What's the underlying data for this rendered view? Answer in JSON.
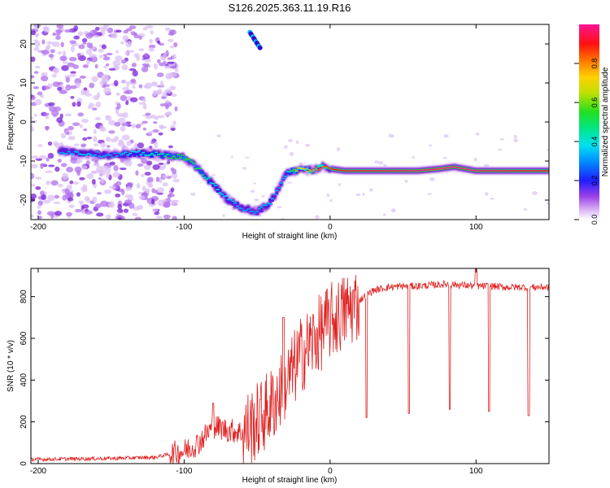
{
  "chart_data": [
    {
      "type": "heatmap",
      "title": "S126.2025.363.11.19.R16",
      "xlabel": "Height of straight line (km)",
      "ylabel": "Frequency (Hz)",
      "xlim": [
        -205,
        150
      ],
      "ylim": [
        -25,
        25
      ],
      "xticks": [
        -200,
        -100,
        0,
        100
      ],
      "yticks": [
        -20,
        -10,
        0,
        10,
        20
      ],
      "colorbar": {
        "label": "Normalized spectral amplitude",
        "range": [
          0,
          1
        ],
        "ticks": [
          0.0,
          0.2,
          0.4,
          0.6,
          0.8
        ],
        "colormap": [
          "#ffffff",
          "#c78df0",
          "#7a20d8",
          "#1a1aff",
          "#0090ff",
          "#00d8ff",
          "#00e6a0",
          "#20e020",
          "#b8e000",
          "#ffd000",
          "#ff8000",
          "#ff1010",
          "#ff1493"
        ]
      },
      "ridge_track": {
        "x": [
          -185,
          -170,
          -150,
          -130,
          -115,
          -100,
          -90,
          -80,
          -70,
          -60,
          -50,
          -42,
          -35,
          -30,
          -25,
          -20,
          -15,
          -10,
          -5,
          0,
          10,
          30,
          60,
          75,
          85,
          100,
          125,
          150
        ],
        "y": [
          -7.5,
          -8,
          -8.5,
          -8,
          -8.5,
          -9,
          -12,
          -16,
          -20,
          -22,
          -23,
          -21,
          -17,
          -13,
          -12.5,
          -12,
          -12.5,
          -12,
          -11.5,
          -12,
          -12.5,
          -12.5,
          -12.5,
          -12,
          -11.5,
          -12.5,
          -12.5,
          -12.5
        ],
        "amplitude": [
          0.3,
          0.35,
          0.3,
          0.4,
          0.45,
          0.55,
          0.5,
          0.4,
          0.35,
          0.3,
          0.3,
          0.35,
          0.3,
          0.35,
          0.55,
          0.7,
          0.75,
          0.8,
          0.8,
          0.85,
          0.9,
          0.9,
          0.95,
          1.0,
          0.95,
          0.95,
          0.9,
          0.9
        ]
      },
      "upper_feature": {
        "x": [
          -55,
          -48
        ],
        "y": [
          23,
          19
        ]
      }
    },
    {
      "type": "line",
      "xlabel": "Height of straight line (km)",
      "ylabel": "SNR (10 * v/v)",
      "xlim": [
        -205,
        150
      ],
      "ylim": [
        0,
        935
      ],
      "xticks": [
        -200,
        -100,
        0,
        100
      ],
      "yticks": [
        0,
        200,
        400,
        600,
        800
      ],
      "color": "#e02020",
      "series": [
        {
          "name": "SNR",
          "x": [
            -205,
            -150,
            -120,
            -100,
            -90,
            -80,
            -70,
            -60,
            -50,
            -40,
            -30,
            -25,
            -20,
            -15,
            -10,
            -5,
            0,
            5,
            10,
            15,
            20,
            25,
            30,
            40,
            50,
            60,
            70,
            80,
            90,
            100,
            110,
            120,
            130,
            140,
            150
          ],
          "y": [
            20,
            25,
            30,
            60,
            100,
            180,
            160,
            150,
            200,
            280,
            380,
            450,
            520,
            560,
            600,
            640,
            680,
            700,
            730,
            750,
            780,
            810,
            830,
            845,
            850,
            850,
            855,
            860,
            855,
            850,
            850,
            845,
            845,
            845,
            845
          ]
        }
      ],
      "dips": [
        {
          "x": 25,
          "y": 220
        },
        {
          "x": 54,
          "y": 240
        },
        {
          "x": 82,
          "y": 260
        },
        {
          "x": 109,
          "y": 250
        },
        {
          "x": 136,
          "y": 230
        }
      ],
      "spikes": [
        {
          "x": -80,
          "y": 290
        },
        {
          "x": -32,
          "y": 700
        },
        {
          "x": 100,
          "y": 935
        }
      ]
    }
  ]
}
